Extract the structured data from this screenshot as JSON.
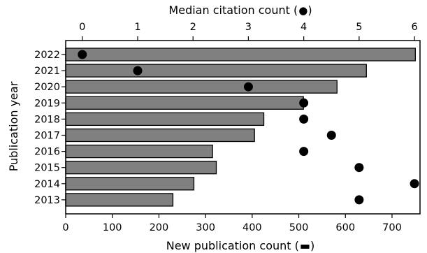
{
  "chart_data": {
    "type": "bar",
    "orientation": "horizontal",
    "categories": [
      "2022",
      "2021",
      "2020",
      "2019",
      "2018",
      "2017",
      "2016",
      "2015",
      "2014",
      "2013"
    ],
    "series": [
      {
        "kind": "bar",
        "values": [
          750,
          645,
          582,
          510,
          425,
          405,
          315,
          323,
          275,
          230
        ],
        "color": "#808080"
      },
      {
        "kind": "scatter",
        "values": [
          0,
          1,
          3,
          4,
          4,
          4.5,
          4,
          5,
          6,
          5
        ],
        "color": "#000000"
      }
    ],
    "xlabel_bottom": "New publication count (",
    "xlabel_top": "Median citation count (",
    "ylabel": "Publication year",
    "xlim_bottom": [
      0,
      760
    ],
    "xticks_bottom": [
      0,
      100,
      200,
      300,
      400,
      500,
      600,
      700
    ],
    "xlim_top": [
      -0.3,
      6.1
    ],
    "xticks_top": [
      0,
      1,
      2,
      3,
      4,
      5,
      6
    ],
    "grid": false,
    "legend": "none"
  }
}
